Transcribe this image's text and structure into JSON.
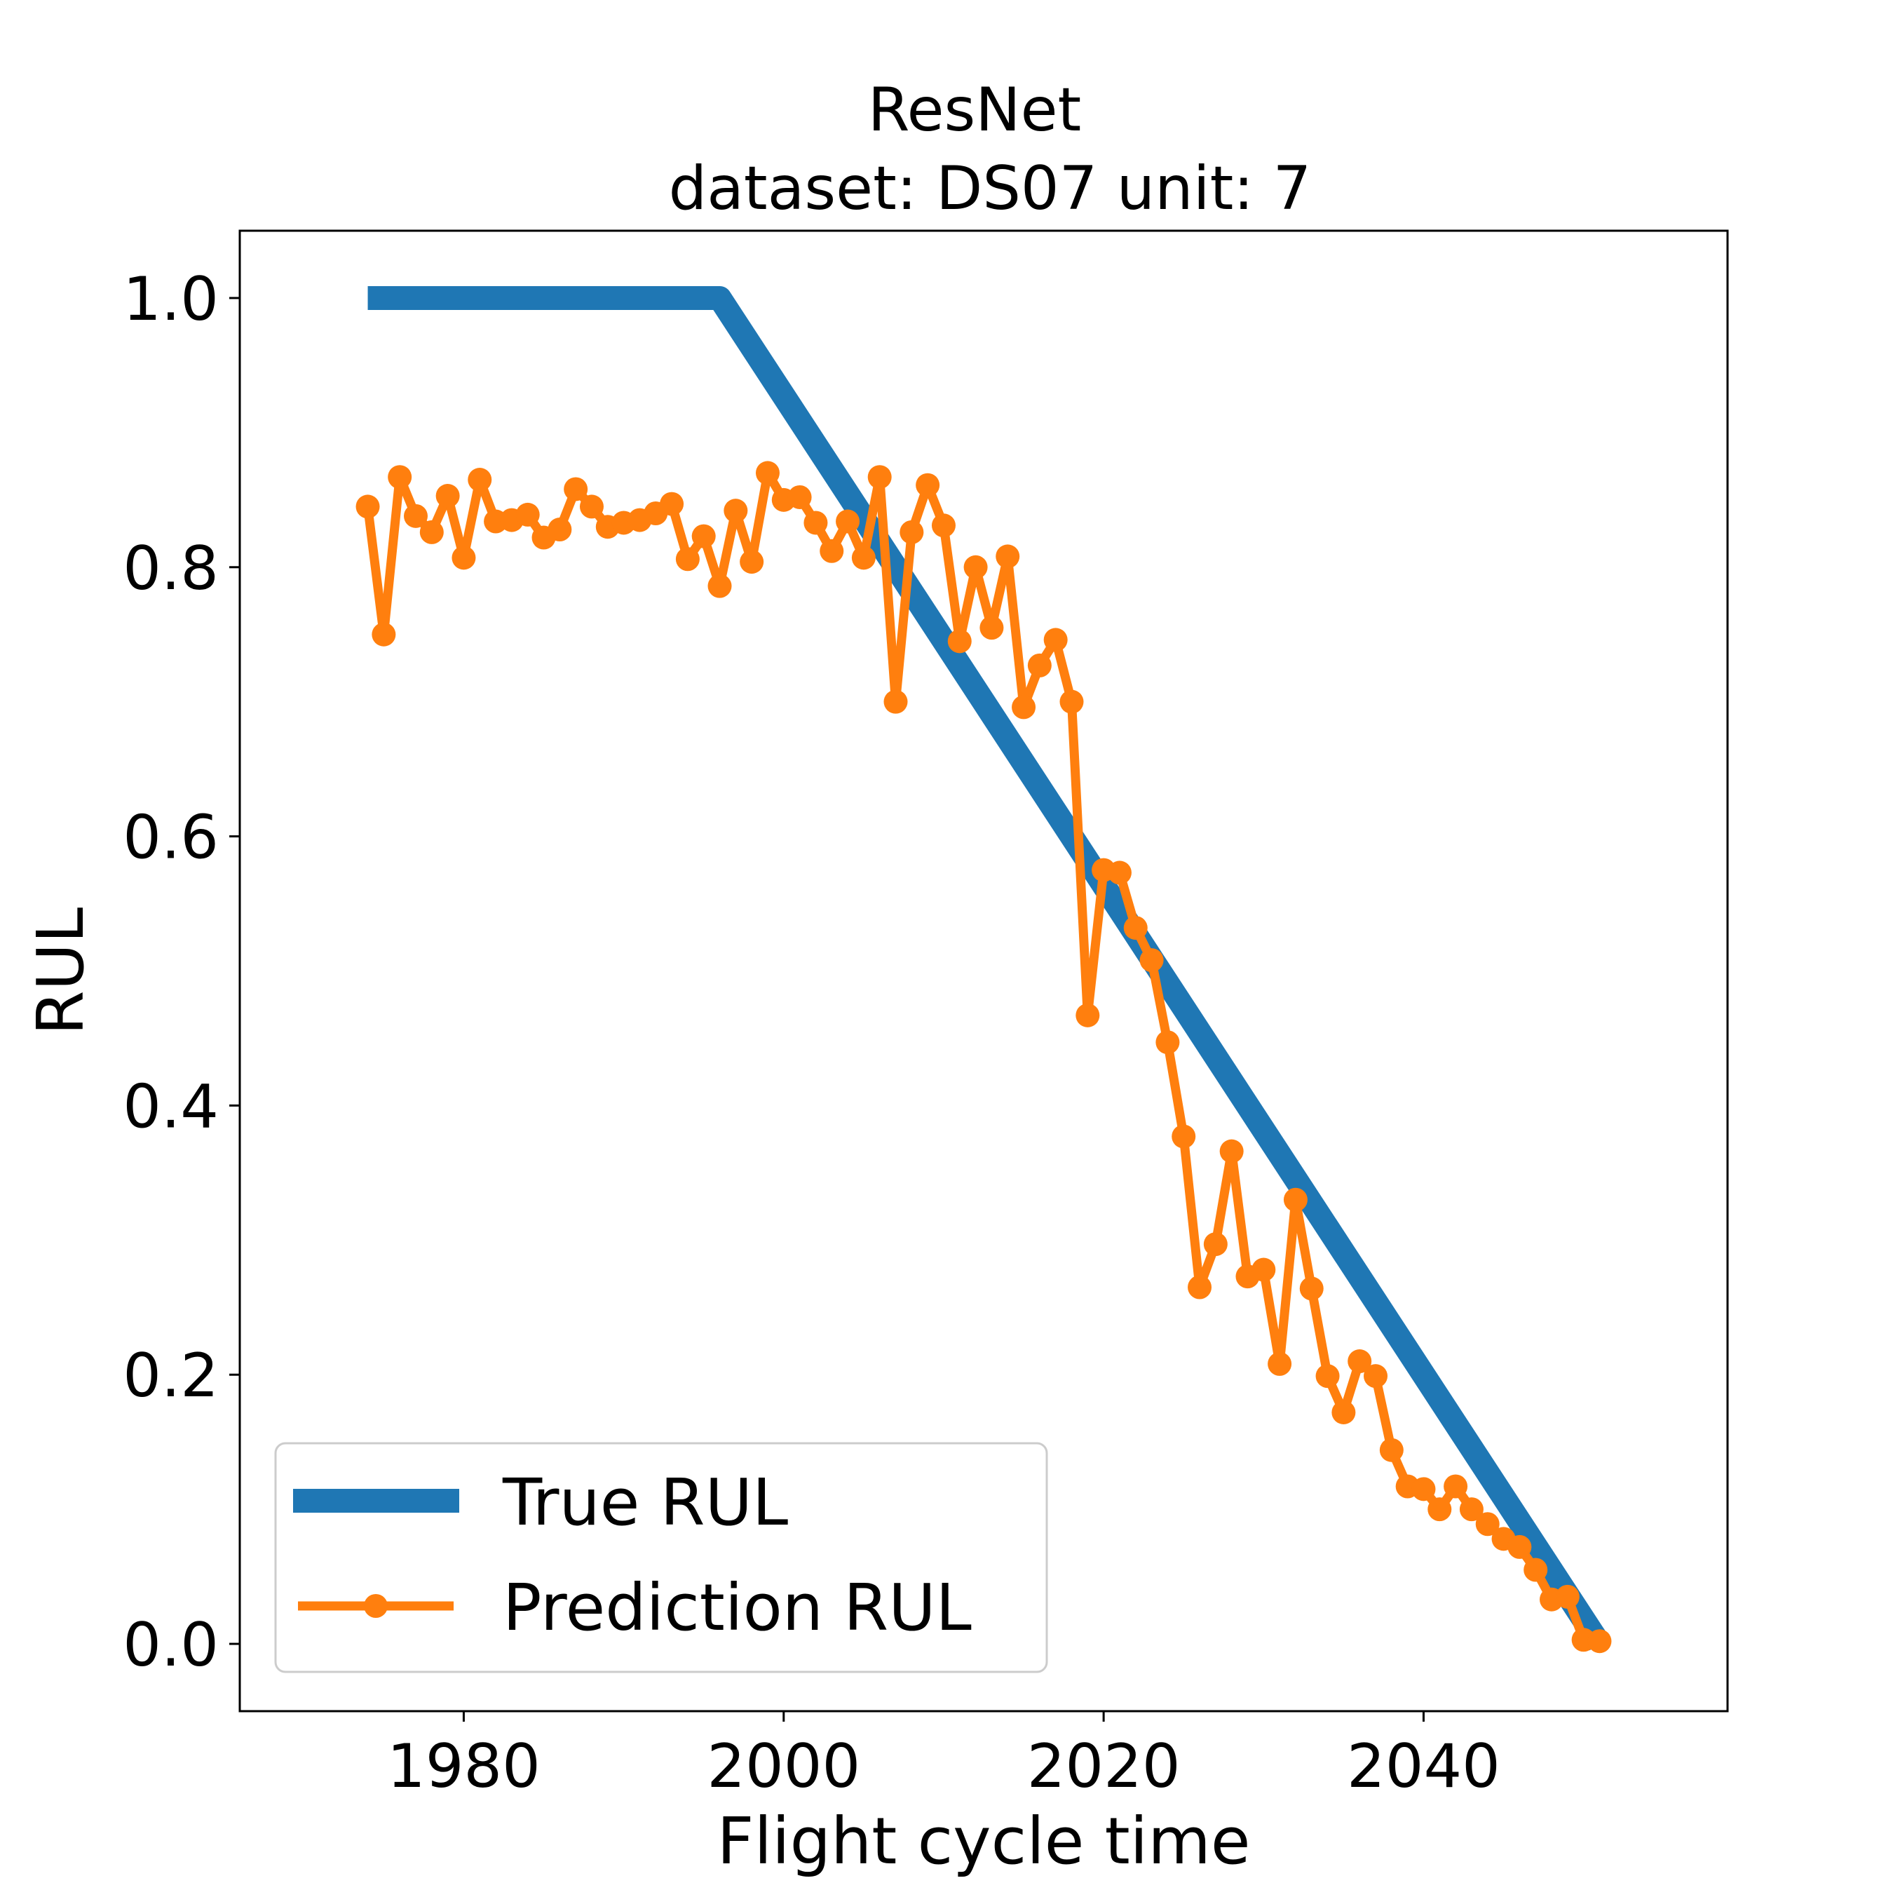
{
  "chart_data": {
    "type": "line",
    "title": "ResNet",
    "subtitle": "dataset: DS07 unit: 7",
    "xlabel": "Flight cycle time",
    "ylabel": "RUL",
    "xlim": [
      1966,
      2059
    ],
    "ylim": [
      -0.05,
      1.05
    ],
    "xticks": [
      1980,
      2000,
      2020,
      2040
    ],
    "yticks": [
      0.0,
      0.2,
      0.4,
      0.6,
      0.8,
      1.0
    ],
    "xtick_labels": [
      "1980",
      "2000",
      "2020",
      "2040"
    ],
    "ytick_labels": [
      "0.0",
      "0.2",
      "0.4",
      "0.6",
      "0.8",
      "1.0"
    ],
    "grid": false,
    "legend_position": "lower-left",
    "series": [
      {
        "name": "True RUL",
        "color": "#1f77b4",
        "marker": "none",
        "x": [
          1974,
          1996,
          2051
        ],
        "y": [
          1.0,
          1.0,
          0.0
        ]
      },
      {
        "name": "Prediction RUL",
        "color": "#ff7f0e",
        "marker": "circle",
        "x": [
          1974,
          1975,
          1976,
          1977,
          1978,
          1979,
          1980,
          1981,
          1982,
          1983,
          1984,
          1985,
          1986,
          1987,
          1988,
          1989,
          1990,
          1991,
          1992,
          1993,
          1994,
          1995,
          1996,
          1997,
          1998,
          1999,
          2000,
          2001,
          2002,
          2003,
          2004,
          2005,
          2006,
          2007,
          2008,
          2009,
          2010,
          2011,
          2012,
          2013,
          2014,
          2015,
          2016,
          2017,
          2018,
          2019,
          2020,
          2021,
          2022,
          2023,
          2024,
          2025,
          2026,
          2027,
          2028,
          2029,
          2030,
          2031,
          2032,
          2033,
          2034,
          2035,
          2036,
          2037,
          2038,
          2039,
          2040,
          2041,
          2042,
          2043,
          2044,
          2045,
          2046,
          2047,
          2048,
          2049,
          2050,
          2051
        ],
        "y": [
          0.845,
          0.75,
          0.867,
          0.838,
          0.826,
          0.853,
          0.807,
          0.865,
          0.834,
          0.835,
          0.839,
          0.822,
          0.828,
          0.858,
          0.845,
          0.83,
          0.833,
          0.835,
          0.84,
          0.847,
          0.806,
          0.823,
          0.786,
          0.842,
          0.804,
          0.87,
          0.85,
          0.852,
          0.833,
          0.812,
          0.834,
          0.807,
          0.867,
          0.7,
          0.826,
          0.861,
          0.831,
          0.745,
          0.8,
          0.755,
          0.808,
          0.696,
          0.727,
          0.746,
          0.7,
          0.467,
          0.575,
          0.573,
          0.532,
          0.508,
          0.447,
          0.377,
          0.265,
          0.297,
          0.366,
          0.273,
          0.278,
          0.208,
          0.33,
          0.264,
          0.199,
          0.172,
          0.21,
          0.199,
          0.144,
          0.117,
          0.115,
          0.1,
          0.117,
          0.1,
          0.089,
          0.078,
          0.072,
          0.055,
          0.033,
          0.035,
          0.003,
          0.002
        ]
      }
    ]
  }
}
